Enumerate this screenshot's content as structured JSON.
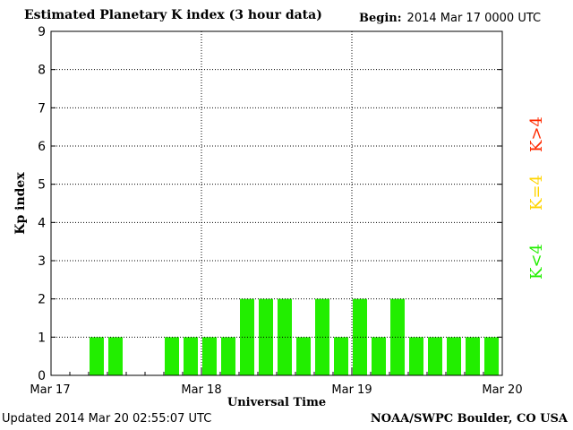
{
  "header": {
    "title": "Estimated Planetary K index (3 hour data)",
    "begin_label": "Begin:",
    "begin_value": "2014 Mar 17 0000 UTC"
  },
  "footer": {
    "updated": "Updated 2014 Mar 20 02:55:07 UTC",
    "source": "NOAA/SWPC Boulder, CO USA"
  },
  "legend": [
    {
      "label": "K>4",
      "color": "#ff2a00"
    },
    {
      "label": "K=4",
      "color": "#ffd400"
    },
    {
      "label": "K<4",
      "color": "#22ee00"
    }
  ],
  "chart_data": {
    "type": "bar",
    "title": "Estimated Planetary K index (3 hour data)",
    "xlabel": "Universal Time",
    "ylabel": "Kp index",
    "ylim": [
      0,
      9
    ],
    "yticks": [
      0,
      1,
      2,
      3,
      4,
      5,
      6,
      7,
      8,
      9
    ],
    "xticks": [
      "Mar 17",
      "Mar 18",
      "Mar 19",
      "Mar 20"
    ],
    "interval_hours": 3,
    "values": [
      0,
      0,
      1,
      1,
      0,
      0,
      1,
      1,
      1,
      1,
      2,
      2,
      2,
      1,
      2,
      1,
      2,
      1,
      2,
      1,
      1,
      1,
      1,
      1
    ],
    "grid": true,
    "bar_color": "#22ee00"
  }
}
